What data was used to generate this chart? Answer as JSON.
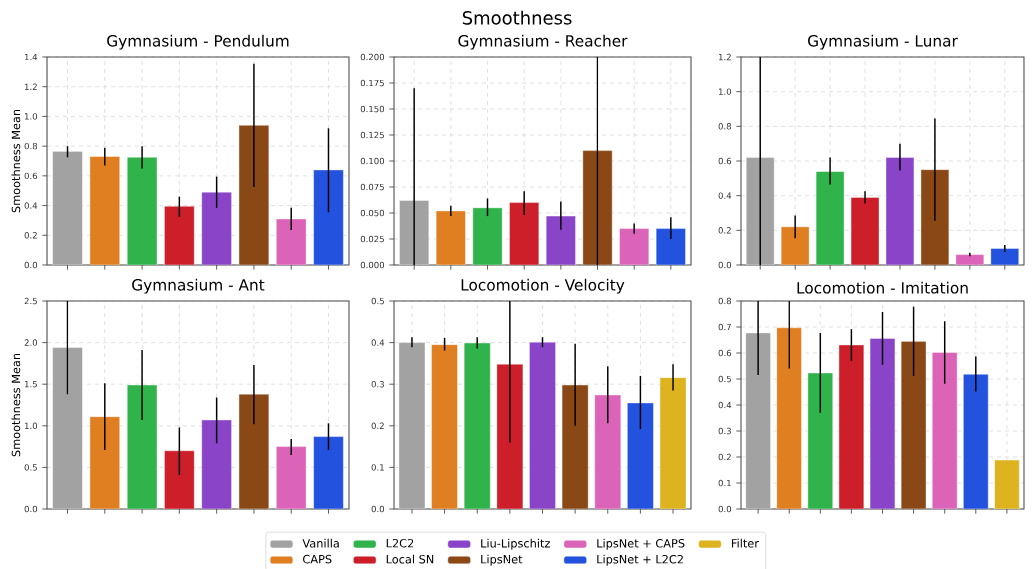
{
  "chart_data": [
    {
      "type": "bar",
      "title": "Gymnasium - Pendulum",
      "ylabel": "Smoothness Mean",
      "annotations": [
        "Smoothness"
      ],
      "grid": true,
      "categories": [
        null,
        null,
        null,
        null,
        null,
        null,
        null,
        null
      ],
      "ylim": [
        0,
        1.4
      ],
      "yticks": [
        {
          "value": 0,
          "label": "0.0"
        },
        {
          "value": 0.2,
          "label": "0.2"
        },
        {
          "value": 0.4,
          "label": "0.4"
        },
        {
          "value": 0.6,
          "label": "0.6"
        },
        {
          "value": 0.8,
          "label": "0.8"
        },
        {
          "value": 1.0,
          "label": "1.0"
        },
        {
          "value": 1.2,
          "label": "1.2"
        },
        {
          "value": 1.4,
          "label": "1.4"
        }
      ],
      "series": [
        {
          "color": "#a2a2a2",
          "values": [
            0.765,
            null,
            null,
            null,
            null,
            null,
            null,
            null
          ],
          "errors": [
            [
              0.725,
              0.8
            ],
            null,
            null,
            null,
            null,
            null,
            null,
            null
          ]
        },
        {
          "color": "#e07e22",
          "values": [
            null,
            0.73,
            null,
            null,
            null,
            null,
            null,
            null
          ],
          "errors": [
            null,
            [
              0.67,
              0.79
            ],
            null,
            null,
            null,
            null,
            null,
            null
          ]
        },
        {
          "color": "#30b34a",
          "values": [
            null,
            null,
            0.725,
            null,
            null,
            null,
            null,
            null
          ],
          "errors": [
            null,
            null,
            [
              0.65,
              0.8
            ],
            null,
            null,
            null,
            null,
            null
          ]
        },
        {
          "color": "#cc1f2a",
          "values": [
            null,
            null,
            null,
            0.395,
            null,
            null,
            null,
            null
          ],
          "errors": [
            null,
            null,
            null,
            [
              0.325,
              0.46
            ],
            null,
            null,
            null,
            null
          ]
        },
        {
          "color": "#8a44c8",
          "values": [
            null,
            null,
            null,
            null,
            0.49,
            null,
            null,
            null
          ],
          "errors": [
            null,
            null,
            null,
            null,
            [
              0.385,
              0.595
            ],
            null,
            null,
            null
          ]
        },
        {
          "color": "#8a4816",
          "values": [
            null,
            null,
            null,
            null,
            null,
            0.94,
            null,
            null
          ],
          "errors": [
            null,
            null,
            null,
            null,
            null,
            [
              0.525,
              1.355
            ],
            null,
            null
          ]
        },
        {
          "color": "#dc64b8",
          "values": [
            null,
            null,
            null,
            null,
            null,
            null,
            0.31,
            null
          ],
          "errors": [
            null,
            null,
            null,
            null,
            null,
            null,
            [
              0.235,
              0.385
            ],
            null
          ]
        },
        {
          "color": "#2352df",
          "values": [
            null,
            null,
            null,
            null,
            null,
            null,
            null,
            0.64
          ],
          "errors": [
            null,
            null,
            null,
            null,
            null,
            null,
            null,
            [
              0.355,
              0.92
            ]
          ]
        }
      ]
    },
    {
      "type": "bar",
      "title": "Gymnasium - Reacher",
      "grid": true,
      "categories": [
        null,
        null,
        null,
        null,
        null,
        null,
        null,
        null
      ],
      "ylim": [
        0,
        0.2
      ],
      "yticks": [
        {
          "value": 0,
          "label": "0.000"
        },
        {
          "value": 0.025,
          "label": "0.025"
        },
        {
          "value": 0.05,
          "label": "0.050"
        },
        {
          "value": 0.075,
          "label": "0.075"
        },
        {
          "value": 0.1,
          "label": "0.100"
        },
        {
          "value": 0.125,
          "label": "0.125"
        },
        {
          "value": 0.15,
          "label": "0.150"
        },
        {
          "value": 0.175,
          "label": "0.175"
        },
        {
          "value": 0.2,
          "label": "0.200"
        }
      ],
      "series": [
        {
          "color": "#a2a2a2",
          "values": [
            0.062,
            null,
            null,
            null,
            null,
            null,
            null,
            null
          ],
          "errors": [
            [
              0,
              0.17
            ],
            null,
            null,
            null,
            null,
            null,
            null,
            null
          ]
        },
        {
          "color": "#e07e22",
          "values": [
            null,
            0.052,
            null,
            null,
            null,
            null,
            null,
            null
          ],
          "errors": [
            null,
            [
              0.047,
              0.057
            ],
            null,
            null,
            null,
            null,
            null,
            null
          ]
        },
        {
          "color": "#30b34a",
          "values": [
            null,
            null,
            0.055,
            null,
            null,
            null,
            null,
            null
          ],
          "errors": [
            null,
            null,
            [
              0.047,
              0.064
            ],
            null,
            null,
            null,
            null,
            null
          ]
        },
        {
          "color": "#cc1f2a",
          "values": [
            null,
            null,
            null,
            0.06,
            null,
            null,
            null,
            null
          ],
          "errors": [
            null,
            null,
            null,
            [
              0.048,
              0.071
            ],
            null,
            null,
            null,
            null
          ]
        },
        {
          "color": "#8a44c8",
          "values": [
            null,
            null,
            null,
            null,
            0.047,
            null,
            null,
            null
          ],
          "errors": [
            null,
            null,
            null,
            null,
            [
              0.034,
              0.061
            ],
            null,
            null,
            null
          ]
        },
        {
          "color": "#8a4816",
          "values": [
            null,
            null,
            null,
            null,
            null,
            0.11,
            null,
            null
          ],
          "errors": [
            null,
            null,
            null,
            null,
            null,
            [
              0,
              0.2
            ],
            null,
            null
          ]
        },
        {
          "color": "#dc64b8",
          "values": [
            null,
            null,
            null,
            null,
            null,
            null,
            0.035,
            null
          ],
          "errors": [
            null,
            null,
            null,
            null,
            null,
            null,
            [
              0.03,
              0.04
            ],
            null
          ]
        },
        {
          "color": "#2352df",
          "values": [
            null,
            null,
            null,
            null,
            null,
            null,
            null,
            0.035
          ],
          "errors": [
            null,
            null,
            null,
            null,
            null,
            null,
            null,
            [
              0.025,
              0.046
            ]
          ]
        }
      ]
    },
    {
      "type": "bar",
      "title": "Gymnasium - Lunar",
      "grid": true,
      "categories": [
        null,
        null,
        null,
        null,
        null,
        null,
        null,
        null
      ],
      "ylim": [
        0,
        1.2
      ],
      "yticks": [
        {
          "value": 0,
          "label": "0.0"
        },
        {
          "value": 0.2,
          "label": "0.2"
        },
        {
          "value": 0.4,
          "label": "0.4"
        },
        {
          "value": 0.6,
          "label": "0.6"
        },
        {
          "value": 0.8,
          "label": "0.8"
        },
        {
          "value": 1.0,
          "label": "1.0"
        },
        {
          "value": 1.2,
          "label": "1.2"
        }
      ],
      "series": [
        {
          "color": "#a2a2a2",
          "values": [
            0.62,
            null,
            null,
            null,
            null,
            null,
            null,
            null
          ],
          "errors": [
            [
              0,
              1.2
            ],
            null,
            null,
            null,
            null,
            null,
            null,
            null
          ]
        },
        {
          "color": "#e07e22",
          "values": [
            null,
            0.22,
            null,
            null,
            null,
            null,
            null,
            null
          ],
          "errors": [
            null,
            [
              0.155,
              0.285
            ],
            null,
            null,
            null,
            null,
            null,
            null
          ]
        },
        {
          "color": "#30b34a",
          "values": [
            null,
            null,
            0.54,
            null,
            null,
            null,
            null,
            null
          ],
          "errors": [
            null,
            null,
            [
              0.465,
              0.62
            ],
            null,
            null,
            null,
            null,
            null
          ]
        },
        {
          "color": "#cc1f2a",
          "values": [
            null,
            null,
            null,
            0.39,
            null,
            null,
            null,
            null
          ],
          "errors": [
            null,
            null,
            null,
            [
              0.355,
              0.425
            ],
            null,
            null,
            null,
            null
          ]
        },
        {
          "color": "#8a44c8",
          "values": [
            null,
            null,
            null,
            null,
            0.62,
            null,
            null,
            null
          ],
          "errors": [
            null,
            null,
            null,
            null,
            [
              0.545,
              0.7
            ],
            null,
            null,
            null
          ]
        },
        {
          "color": "#8a4816",
          "values": [
            null,
            null,
            null,
            null,
            null,
            0.55,
            null,
            null
          ],
          "errors": [
            null,
            null,
            null,
            null,
            null,
            [
              0.255,
              0.845
            ],
            null,
            null
          ]
        },
        {
          "color": "#dc64b8",
          "values": [
            null,
            null,
            null,
            null,
            null,
            null,
            0.06,
            null
          ],
          "errors": [
            null,
            null,
            null,
            null,
            null,
            null,
            [
              0.05,
              0.07
            ],
            null
          ]
        },
        {
          "color": "#2352df",
          "values": [
            null,
            null,
            null,
            null,
            null,
            null,
            null,
            0.095
          ],
          "errors": [
            null,
            null,
            null,
            null,
            null,
            null,
            null,
            [
              0.075,
              0.115
            ]
          ]
        }
      ]
    },
    {
      "type": "bar",
      "title": "Gymnasium - Ant",
      "ylabel": "Smoothness Mean",
      "grid": true,
      "categories": [
        null,
        null,
        null,
        null,
        null,
        null,
        null,
        null
      ],
      "ylim": [
        0,
        2.5
      ],
      "yticks": [
        {
          "value": 0,
          "label": "0.0"
        },
        {
          "value": 0.5,
          "label": "0.5"
        },
        {
          "value": 1.0,
          "label": "1.0"
        },
        {
          "value": 1.5,
          "label": "1.5"
        },
        {
          "value": 2.0,
          "label": "2.0"
        },
        {
          "value": 2.5,
          "label": "2.5"
        }
      ],
      "series": [
        {
          "color": "#a2a2a2",
          "values": [
            1.94,
            null,
            null,
            null,
            null,
            null,
            null,
            null
          ],
          "errors": [
            [
              1.38,
              2.5
            ],
            null,
            null,
            null,
            null,
            null,
            null,
            null
          ]
        },
        {
          "color": "#e07e22",
          "values": [
            null,
            1.11,
            null,
            null,
            null,
            null,
            null,
            null
          ],
          "errors": [
            null,
            [
              0.71,
              1.51
            ],
            null,
            null,
            null,
            null,
            null,
            null
          ]
        },
        {
          "color": "#30b34a",
          "values": [
            null,
            null,
            1.49,
            null,
            null,
            null,
            null,
            null
          ],
          "errors": [
            null,
            null,
            [
              1.07,
              1.91
            ],
            null,
            null,
            null,
            null,
            null
          ]
        },
        {
          "color": "#cc1f2a",
          "values": [
            null,
            null,
            null,
            0.7,
            null,
            null,
            null,
            null
          ],
          "errors": [
            null,
            null,
            null,
            [
              0.41,
              0.98
            ],
            null,
            null,
            null,
            null
          ]
        },
        {
          "color": "#8a44c8",
          "values": [
            null,
            null,
            null,
            null,
            1.07,
            null,
            null,
            null
          ],
          "errors": [
            null,
            null,
            null,
            null,
            [
              0.79,
              1.34
            ],
            null,
            null,
            null
          ]
        },
        {
          "color": "#8a4816",
          "values": [
            null,
            null,
            null,
            null,
            null,
            1.38,
            null,
            null
          ],
          "errors": [
            null,
            null,
            null,
            null,
            null,
            [
              1.02,
              1.73
            ],
            null,
            null
          ]
        },
        {
          "color": "#dc64b8",
          "values": [
            null,
            null,
            null,
            null,
            null,
            null,
            0.75,
            null
          ],
          "errors": [
            null,
            null,
            null,
            null,
            null,
            null,
            [
              0.65,
              0.84
            ],
            null
          ]
        },
        {
          "color": "#2352df",
          "values": [
            null,
            null,
            null,
            null,
            null,
            null,
            null,
            0.87
          ],
          "errors": [
            null,
            null,
            null,
            null,
            null,
            null,
            null,
            [
              0.71,
              1.03
            ]
          ]
        }
      ]
    },
    {
      "type": "bar",
      "title": "Locomotion - Velocity",
      "grid": true,
      "legend": "bottom",
      "categories": [
        null,
        null,
        null,
        null,
        null,
        null,
        null,
        null,
        null
      ],
      "ylim": [
        0,
        0.5
      ],
      "yticks": [
        {
          "value": 0,
          "label": "0.0"
        },
        {
          "value": 0.1,
          "label": "0.1"
        },
        {
          "value": 0.2,
          "label": "0.2"
        },
        {
          "value": 0.3,
          "label": "0.3"
        },
        {
          "value": 0.4,
          "label": "0.4"
        },
        {
          "value": 0.5,
          "label": "0.5"
        }
      ],
      "series": [
        {
          "name": "Vanilla",
          "color": "#a2a2a2",
          "values": [
            0.4,
            null,
            null,
            null,
            null,
            null,
            null,
            null,
            null
          ],
          "errors": [
            [
              0.389,
              0.413
            ],
            null,
            null,
            null,
            null,
            null,
            null,
            null,
            null
          ]
        },
        {
          "name": "CAPS",
          "color": "#e07e22",
          "values": [
            null,
            0.395,
            null,
            null,
            null,
            null,
            null,
            null,
            null
          ],
          "errors": [
            null,
            [
              0.381,
              0.411
            ],
            null,
            null,
            null,
            null,
            null,
            null,
            null
          ]
        },
        {
          "name": "L2C2",
          "color": "#30b34a",
          "values": [
            null,
            null,
            0.399,
            null,
            null,
            null,
            null,
            null,
            null
          ],
          "errors": [
            null,
            null,
            [
              0.386,
              0.413
            ],
            null,
            null,
            null,
            null,
            null,
            null
          ]
        },
        {
          "name": "Local SN",
          "color": "#cc1f2a",
          "values": [
            null,
            null,
            null,
            0.348,
            null,
            null,
            null,
            null,
            null
          ],
          "errors": [
            null,
            null,
            null,
            [
              0.16,
              0.5
            ],
            null,
            null,
            null,
            null,
            null
          ]
        },
        {
          "name": "Liu-Lipschitz",
          "color": "#8a44c8",
          "values": [
            null,
            null,
            null,
            null,
            0.401,
            null,
            null,
            null,
            null
          ],
          "errors": [
            null,
            null,
            null,
            null,
            [
              0.389,
              0.413
            ],
            null,
            null,
            null,
            null
          ]
        },
        {
          "name": "LipsNet",
          "color": "#8a4816",
          "values": [
            null,
            null,
            null,
            null,
            null,
            0.298,
            null,
            null,
            null
          ],
          "errors": [
            null,
            null,
            null,
            null,
            null,
            [
              0.2,
              0.397
            ],
            null,
            null,
            null
          ]
        },
        {
          "name": "LipsNet + CAPS",
          "color": "#dc64b8",
          "values": [
            null,
            null,
            null,
            null,
            null,
            null,
            0.274,
            null,
            null
          ],
          "errors": [
            null,
            null,
            null,
            null,
            null,
            null,
            [
              0.206,
              0.343
            ],
            null,
            null
          ]
        },
        {
          "name": "LipsNet + L2C2",
          "color": "#2352df",
          "values": [
            null,
            null,
            null,
            null,
            null,
            null,
            null,
            0.255,
            null
          ],
          "errors": [
            null,
            null,
            null,
            null,
            null,
            null,
            null,
            [
              0.192,
              0.32
            ],
            null
          ]
        },
        {
          "name": "Filter",
          "color": "#ddb320",
          "values": [
            null,
            null,
            null,
            null,
            null,
            null,
            null,
            null,
            0.316
          ],
          "errors": [
            null,
            null,
            null,
            null,
            null,
            null,
            null,
            null,
            [
              0.285,
              0.348
            ]
          ]
        }
      ]
    },
    {
      "type": "bar",
      "title": "Locomotion - Imitation",
      "grid": true,
      "categories": [
        null,
        null,
        null,
        null,
        null,
        null,
        null,
        null,
        null
      ],
      "ylim": [
        0,
        0.8
      ],
      "yticks": [
        {
          "value": 0,
          "label": "0.0"
        },
        {
          "value": 0.1,
          "label": "0.1"
        },
        {
          "value": 0.2,
          "label": "0.2"
        },
        {
          "value": 0.3,
          "label": "0.3"
        },
        {
          "value": 0.4,
          "label": "0.4"
        },
        {
          "value": 0.5,
          "label": "0.5"
        },
        {
          "value": 0.6,
          "label": "0.6"
        },
        {
          "value": 0.7,
          "label": "0.7"
        },
        {
          "value": 0.8,
          "label": "0.8"
        }
      ],
      "series": [
        {
          "color": "#a2a2a2",
          "values": [
            0.677,
            null,
            null,
            null,
            null,
            null,
            null,
            null,
            null
          ],
          "errors": [
            [
              0.515,
              0.8
            ],
            null,
            null,
            null,
            null,
            null,
            null,
            null,
            null
          ]
        },
        {
          "color": "#e07e22",
          "values": [
            null,
            0.697,
            null,
            null,
            null,
            null,
            null,
            null,
            null
          ],
          "errors": [
            null,
            [
              0.54,
              0.8
            ],
            null,
            null,
            null,
            null,
            null,
            null,
            null
          ]
        },
        {
          "color": "#30b34a",
          "values": [
            null,
            null,
            0.523,
            null,
            null,
            null,
            null,
            null,
            null
          ],
          "errors": [
            null,
            null,
            [
              0.37,
              0.677
            ],
            null,
            null,
            null,
            null,
            null,
            null
          ]
        },
        {
          "color": "#cc1f2a",
          "values": [
            null,
            null,
            null,
            0.631,
            null,
            null,
            null,
            null,
            null
          ],
          "errors": [
            null,
            null,
            null,
            [
              0.57,
              0.692
            ],
            null,
            null,
            null,
            null,
            null
          ]
        },
        {
          "color": "#8a44c8",
          "values": [
            null,
            null,
            null,
            null,
            0.656,
            null,
            null,
            null,
            null
          ],
          "errors": [
            null,
            null,
            null,
            null,
            [
              0.555,
              0.758
            ],
            null,
            null,
            null,
            null
          ]
        },
        {
          "color": "#8a4816",
          "values": [
            null,
            null,
            null,
            null,
            null,
            0.645,
            null,
            null,
            null
          ],
          "errors": [
            null,
            null,
            null,
            null,
            null,
            [
              0.512,
              0.778
            ],
            null,
            null,
            null
          ]
        },
        {
          "color": "#dc64b8",
          "values": [
            null,
            null,
            null,
            null,
            null,
            null,
            0.602,
            null,
            null
          ],
          "errors": [
            null,
            null,
            null,
            null,
            null,
            null,
            [
              0.482,
              0.722
            ],
            null,
            null
          ]
        },
        {
          "color": "#2352df",
          "values": [
            null,
            null,
            null,
            null,
            null,
            null,
            null,
            0.518,
            null
          ],
          "errors": [
            null,
            null,
            null,
            null,
            null,
            null,
            null,
            [
              0.452,
              0.587
            ],
            null
          ]
        },
        {
          "color": "#ddb320",
          "values": [
            null,
            null,
            null,
            null,
            null,
            null,
            null,
            null,
            0.188
          ],
          "errors": [
            null,
            null,
            null,
            null,
            null,
            null,
            null,
            null,
            null
          ]
        }
      ]
    }
  ]
}
